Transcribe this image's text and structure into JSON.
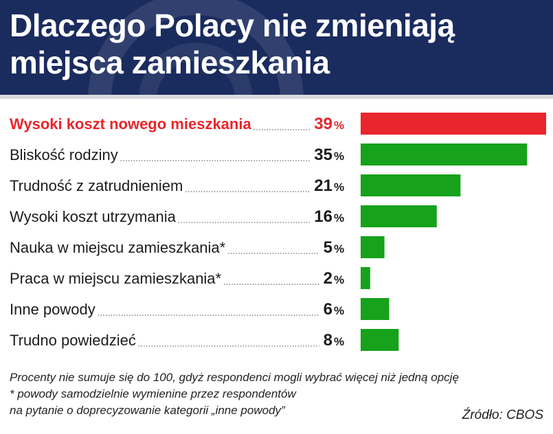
{
  "title": "Dlaczego Polacy nie zmieniają miejsca zamieszkania",
  "title_lines": [
    "Dlaczego Polacy nie zmieniają",
    "miejsca zamieszkania"
  ],
  "colors": {
    "header_bg": "#1a2b5e",
    "highlight": "#e8262b",
    "bar": "#16a21a",
    "text": "#1c1c1c"
  },
  "chart_data": {
    "type": "bar",
    "orientation": "horizontal",
    "title": "Dlaczego Polacy nie zmieniają miejsca zamieszkania",
    "categories": [
      "Wysoki koszt nowego mieszkania",
      "Bliskość rodziny",
      "Trudność z zatrudnieniem",
      "Wysoki koszt utrzymania",
      "Nauka w miejscu zamieszkania*",
      "Praca w miejscu zamieszkania*",
      "Inne powody",
      "Trudno powiedzieć"
    ],
    "values": [
      39,
      35,
      21,
      16,
      5,
      2,
      6,
      8
    ],
    "labels": [
      "39",
      "35",
      "21",
      "16",
      "5",
      "2",
      "6",
      "8"
    ],
    "unit": "%",
    "highlight_index": 0,
    "xlim": [
      0,
      39
    ]
  },
  "footer": {
    "notes": [
      "Procenty nie sumuje się do 100, gdyż respondenci mogli wybrać więcej niż jedną opcję",
      "* powody samodzielnie wymienine przez respondentów",
      "na pytanie o doprecyzowanie kategorii „inne powody”"
    ],
    "source": "Źródło: CBOS"
  }
}
